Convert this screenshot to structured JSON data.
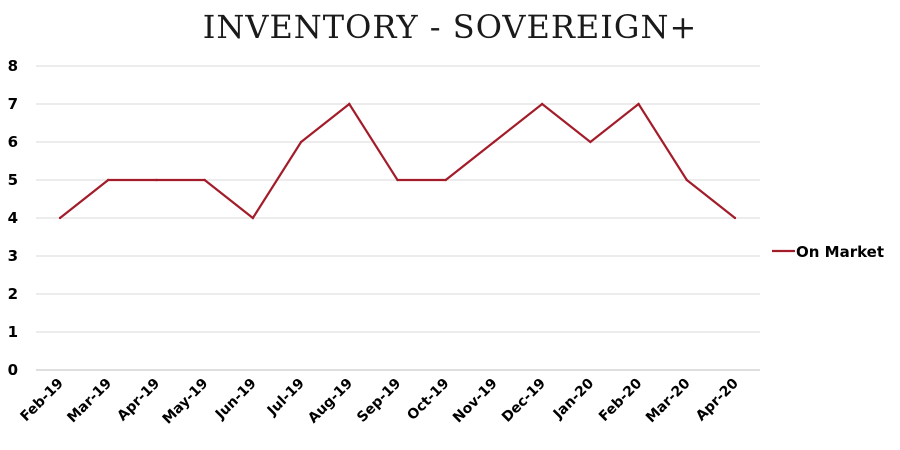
{
  "chart_data": {
    "type": "line",
    "title": "INVENTORY - SOVEREIGN+",
    "xlabel": "",
    "ylabel": "",
    "categories": [
      "Feb-19",
      "Mar-19",
      "Apr-19",
      "May-19",
      "Jun-19",
      "Jul-19",
      "Aug-19",
      "Sep-19",
      "Oct-19",
      "Nov-19",
      "Dec-19",
      "Jan-20",
      "Feb-20",
      "Mar-20",
      "Apr-20"
    ],
    "series": [
      {
        "name": "On Market",
        "color": "#a31c2a",
        "values": [
          4,
          5,
          5,
          5,
          4,
          6,
          7,
          5,
          5,
          6,
          7,
          6,
          7,
          5,
          4
        ]
      }
    ],
    "ylim": [
      0,
      8
    ],
    "yticks": [
      0,
      1,
      2,
      3,
      4,
      5,
      6,
      7,
      8
    ],
    "grid": true,
    "legend_position": "right"
  }
}
